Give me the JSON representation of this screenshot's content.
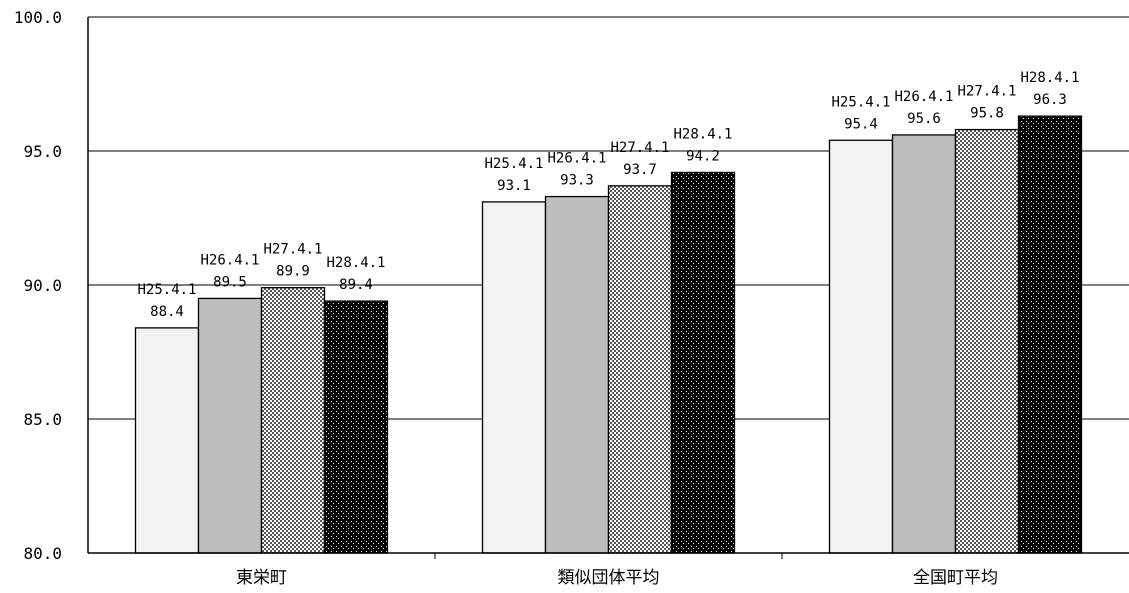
{
  "chart_data": {
    "type": "bar",
    "categories": [
      "東栄町",
      "類似団体平均",
      "全国町平均"
    ],
    "series_labels": [
      "H25.4.1",
      "H26.4.1",
      "H27.4.1",
      "H28.4.1"
    ],
    "values": [
      [
        88.4,
        89.5,
        89.9,
        89.4
      ],
      [
        93.1,
        93.3,
        93.7,
        94.2
      ],
      [
        95.4,
        95.6,
        95.8,
        96.3
      ]
    ],
    "value_labels": [
      [
        "88.4",
        "89.5",
        "89.9",
        "89.4"
      ],
      [
        "93.1",
        "93.3",
        "93.7",
        "94.2"
      ],
      [
        "95.4",
        "95.6",
        "95.8",
        "96.3"
      ]
    ],
    "yticks": [
      "100.0",
      "95.0",
      "90.0",
      "85.0",
      "80.0"
    ],
    "ylim": [
      80,
      100
    ],
    "grid": true,
    "legend": "none",
    "bar_fills": [
      "light-gray",
      "gray",
      "fine-checker",
      "dark-dotted"
    ]
  }
}
